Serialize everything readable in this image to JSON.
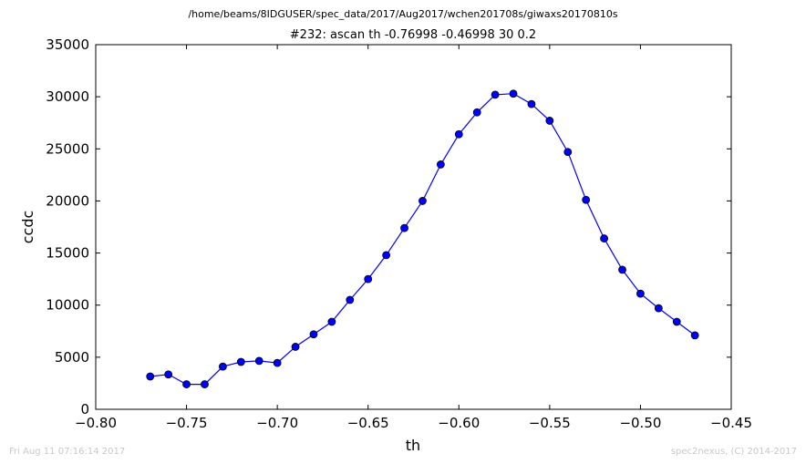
{
  "chart_data": {
    "type": "line",
    "suptitle": "/home/beams/8IDGUSER/spec_data/2017/Aug2017/wchen201708s/giwaxs20170810s",
    "title": "#232: ascan  th -0.76998 -0.46998  30 0.2",
    "xlabel": "th",
    "ylabel": "ccdc",
    "xlim": [
      -0.8,
      -0.45
    ],
    "ylim": [
      0,
      35000
    ],
    "xticks": [
      -0.8,
      -0.75,
      -0.7,
      -0.65,
      -0.6,
      -0.55,
      -0.5,
      -0.45
    ],
    "xtick_labels": [
      "−0.80",
      "−0.75",
      "−0.70",
      "−0.65",
      "−0.60",
      "−0.55",
      "−0.50",
      "−0.45"
    ],
    "yticks": [
      0,
      5000,
      10000,
      15000,
      20000,
      25000,
      30000,
      35000
    ],
    "ytick_labels": [
      "0",
      "5000",
      "10000",
      "15000",
      "20000",
      "25000",
      "30000",
      "35000"
    ],
    "grid": false,
    "line_color": "#0000ff",
    "series": [
      {
        "x": [
          -0.77,
          -0.76,
          -0.75,
          -0.74,
          -0.73,
          -0.72,
          -0.71,
          -0.7,
          -0.69,
          -0.68,
          -0.67,
          -0.66,
          -0.65,
          -0.64,
          -0.63,
          -0.62,
          -0.61,
          -0.6,
          -0.59,
          -0.58,
          -0.57,
          -0.56,
          -0.55,
          -0.54,
          -0.53,
          -0.52,
          -0.51,
          -0.5,
          -0.49,
          -0.48,
          -0.47
        ],
        "values": [
          3150,
          3350,
          2400,
          2400,
          4100,
          4550,
          4650,
          4450,
          6000,
          7200,
          8400,
          10500,
          12500,
          14800,
          17400,
          20000,
          23500,
          26400,
          28500,
          30200,
          30300,
          29300,
          27700,
          24700,
          20100,
          16400,
          13400,
          11100,
          9700,
          8400,
          7100
        ]
      }
    ]
  },
  "footer": {
    "left": "Fri Aug 11 07:16:14 2017",
    "right": "spec2nexus, (C) 2014-2017"
  }
}
